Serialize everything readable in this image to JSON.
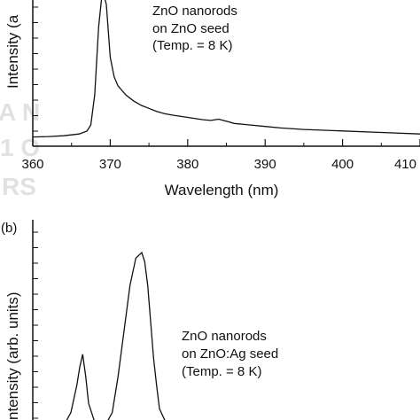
{
  "chart_data": [
    {
      "type": "line",
      "panel_label": "",
      "xlabel": "Wavelength (nm)",
      "ylabel": "Intensity (a",
      "xlim": [
        360,
        410
      ],
      "xticks": [
        360,
        370,
        380,
        390,
        400,
        410
      ],
      "annotation": [
        "ZnO nanorods",
        "on ZnO seed",
        "(Temp. = 8 K)"
      ],
      "series": [
        {
          "x": [
            360,
            362,
            364,
            366,
            367,
            367.5,
            368,
            368.5,
            369,
            369.5,
            370,
            370.5,
            371,
            372,
            373,
            374,
            375,
            376,
            377,
            378,
            380,
            382,
            383,
            384,
            385,
            386,
            388,
            390,
            392,
            395,
            400,
            405,
            410
          ],
          "y": [
            0.02,
            0.023,
            0.028,
            0.04,
            0.06,
            0.1,
            0.3,
            0.75,
            1.0,
            0.9,
            0.55,
            0.42,
            0.36,
            0.3,
            0.26,
            0.23,
            0.21,
            0.19,
            0.175,
            0.165,
            0.15,
            0.135,
            0.13,
            0.138,
            0.125,
            0.11,
            0.1,
            0.09,
            0.08,
            0.07,
            0.06,
            0.05,
            0.04
          ]
        }
      ]
    },
    {
      "type": "line",
      "panel_label": "(b)",
      "xlabel": "",
      "ylabel": "ntensity (arb. units)",
      "annotation": [
        "ZnO nanorods",
        "on ZnO:Ag seed",
        "(Temp. = 8 K)"
      ],
      "series": [
        {
          "x": [
            0,
            0.2,
            0.4,
            0.6,
            0.8,
            0.9,
            1.0,
            1.1,
            1.2,
            1.4,
            1.6,
            1.8,
            2.0,
            2.2,
            2.4,
            2.6,
            2.8,
            3.0,
            3.1,
            3.2,
            3.3,
            3.4,
            3.5,
            3.6,
            3.8,
            4.0,
            4.2
          ],
          "y": [
            0.02,
            0.02,
            0.04,
            0.1,
            0.25,
            0.35,
            0.42,
            0.3,
            0.15,
            0.05,
            0.03,
            0.04,
            0.1,
            0.3,
            0.55,
            0.8,
            0.95,
            0.98,
            0.93,
            0.8,
            0.6,
            0.4,
            0.25,
            0.12,
            0.05,
            0.02,
            0.01
          ]
        }
      ]
    }
  ]
}
